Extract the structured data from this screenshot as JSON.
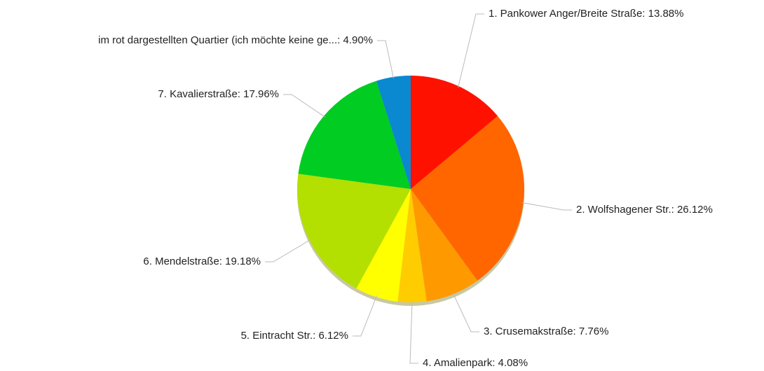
{
  "chart_data": {
    "type": "pie",
    "values": [
      13.88,
      26.12,
      7.76,
      4.08,
      6.12,
      19.18,
      17.96,
      4.9
    ],
    "value_labels": [
      "1. Pankower Anger/Breite Straße: 13.88%",
      "2. Wolfshagener Str.: 26.12%",
      "3. Crusemakstraße: 7.76%",
      "4. Amalienpark: 4.08%",
      "5. Eintracht Str.: 6.12%",
      "6. Mendelstraße: 19.18%",
      "7. Kavalierstraße: 17.96%",
      "im rot dargestellten Quartier (ich möchte keine ge...: 4.90%"
    ],
    "colors": [
      "#ff1100",
      "#ff6600",
      "#ff9900",
      "#ffcc00",
      "#ffff00",
      "#b3e000",
      "#00cc22",
      "#0a88d0"
    ]
  }
}
